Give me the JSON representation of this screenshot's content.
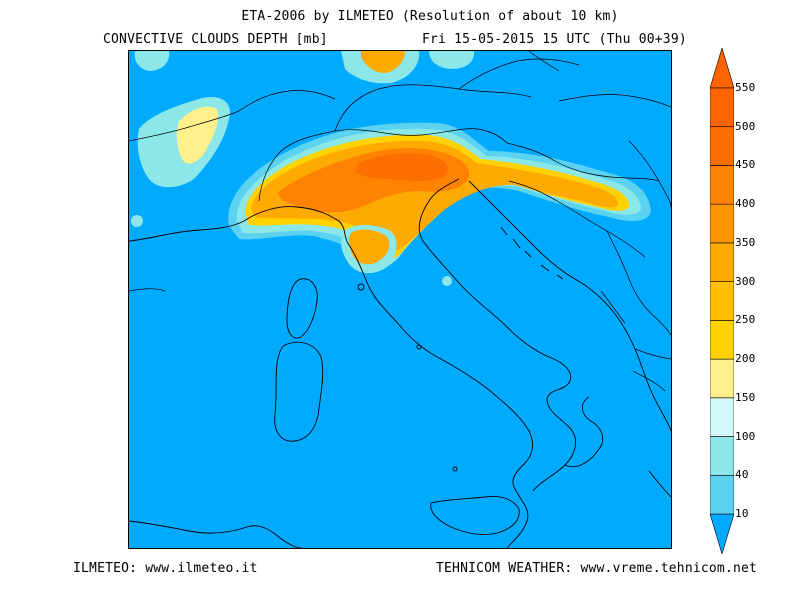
{
  "header": {
    "title": "ETA-2006 by ILMETEO (Resolution of about 10 km)",
    "variable": "CONVECTIVE CLOUDS DEPTH [mb]",
    "valid_time": "Fri 15-05-2015 15 UTC (Thu 00+39)"
  },
  "footer": {
    "left": "ILMETEO: www.ilmeteo.it",
    "right": "TEHNICOM WEATHER: www.vreme.tehnicom.net"
  },
  "legend": {
    "levels": [
      "10",
      "40",
      "100",
      "150",
      "200",
      "250",
      "300",
      "350",
      "400",
      "450",
      "500",
      "550"
    ],
    "colors": [
      "#00aaff",
      "#5ad2f0",
      "#8ce8e8",
      "#d2fafa",
      "#fff08c",
      "#ffd200",
      "#ffbe00",
      "#ffaa00",
      "#ff9600",
      "#ff8200",
      "#ff6e00",
      "#ff6400",
      "#ff6400"
    ]
  },
  "map": {
    "region": "Italy and surrounding areas",
    "sea_color": "#00aaff",
    "coastline_color": "#000000"
  }
}
